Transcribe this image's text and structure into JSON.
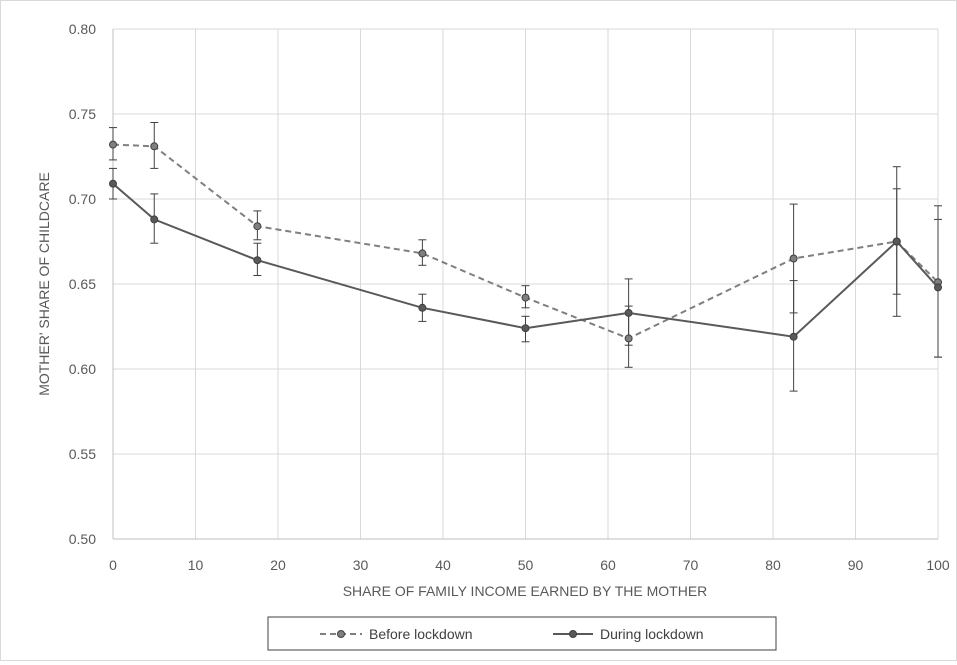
{
  "chart_data": {
    "type": "line",
    "xlabel": "SHARE OF FAMILY INCOME EARNED BY THE MOTHER",
    "ylabel": "MOTHER' SHARE OF CHILDCARE",
    "xlim": [
      0,
      100
    ],
    "ylim": [
      0.5,
      0.8
    ],
    "x_ticks": [
      0,
      10,
      20,
      30,
      40,
      50,
      60,
      70,
      80,
      90,
      100
    ],
    "y_ticks": [
      0.5,
      0.55,
      0.6,
      0.65,
      0.7,
      0.75,
      0.8
    ],
    "x_tick_labels": [
      "0",
      "10",
      "20",
      "30",
      "40",
      "50",
      "60",
      "70",
      "80",
      "90",
      "100"
    ],
    "y_tick_labels": [
      "0.50",
      "0.55",
      "0.60",
      "0.65",
      "0.70",
      "0.75",
      "0.80"
    ],
    "grid": true,
    "legend_position": "bottom",
    "series": [
      {
        "name": "Before lockdown",
        "style": "dashed",
        "color": "#7f7f7f",
        "points": [
          {
            "x": 0,
            "y": 0.732,
            "lo": 0.723,
            "hi": 0.742
          },
          {
            "x": 5,
            "y": 0.731,
            "lo": 0.718,
            "hi": 0.745
          },
          {
            "x": 17.5,
            "y": 0.684,
            "lo": 0.676,
            "hi": 0.693
          },
          {
            "x": 37.5,
            "y": 0.668,
            "lo": 0.661,
            "hi": 0.676
          },
          {
            "x": 50,
            "y": 0.642,
            "lo": 0.636,
            "hi": 0.649
          },
          {
            "x": 62.5,
            "y": 0.618,
            "lo": 0.601,
            "hi": 0.637
          },
          {
            "x": 82.5,
            "y": 0.665,
            "lo": 0.633,
            "hi": 0.697
          },
          {
            "x": 95,
            "y": 0.675,
            "lo": 0.644,
            "hi": 0.706
          },
          {
            "x": 100,
            "y": 0.651,
            "lo": 0.607,
            "hi": 0.696
          }
        ]
      },
      {
        "name": "During lockdown",
        "style": "solid",
        "color": "#595959",
        "points": [
          {
            "x": 0,
            "y": 0.709,
            "lo": 0.7,
            "hi": 0.718
          },
          {
            "x": 5,
            "y": 0.688,
            "lo": 0.674,
            "hi": 0.703
          },
          {
            "x": 17.5,
            "y": 0.664,
            "lo": 0.655,
            "hi": 0.674
          },
          {
            "x": 37.5,
            "y": 0.636,
            "lo": 0.628,
            "hi": 0.644
          },
          {
            "x": 50,
            "y": 0.624,
            "lo": 0.616,
            "hi": 0.631
          },
          {
            "x": 62.5,
            "y": 0.633,
            "lo": 0.614,
            "hi": 0.653
          },
          {
            "x": 82.5,
            "y": 0.619,
            "lo": 0.587,
            "hi": 0.652
          },
          {
            "x": 95,
            "y": 0.675,
            "lo": 0.631,
            "hi": 0.719
          },
          {
            "x": 100,
            "y": 0.648,
            "lo": 0.607,
            "hi": 0.688
          }
        ]
      }
    ]
  }
}
